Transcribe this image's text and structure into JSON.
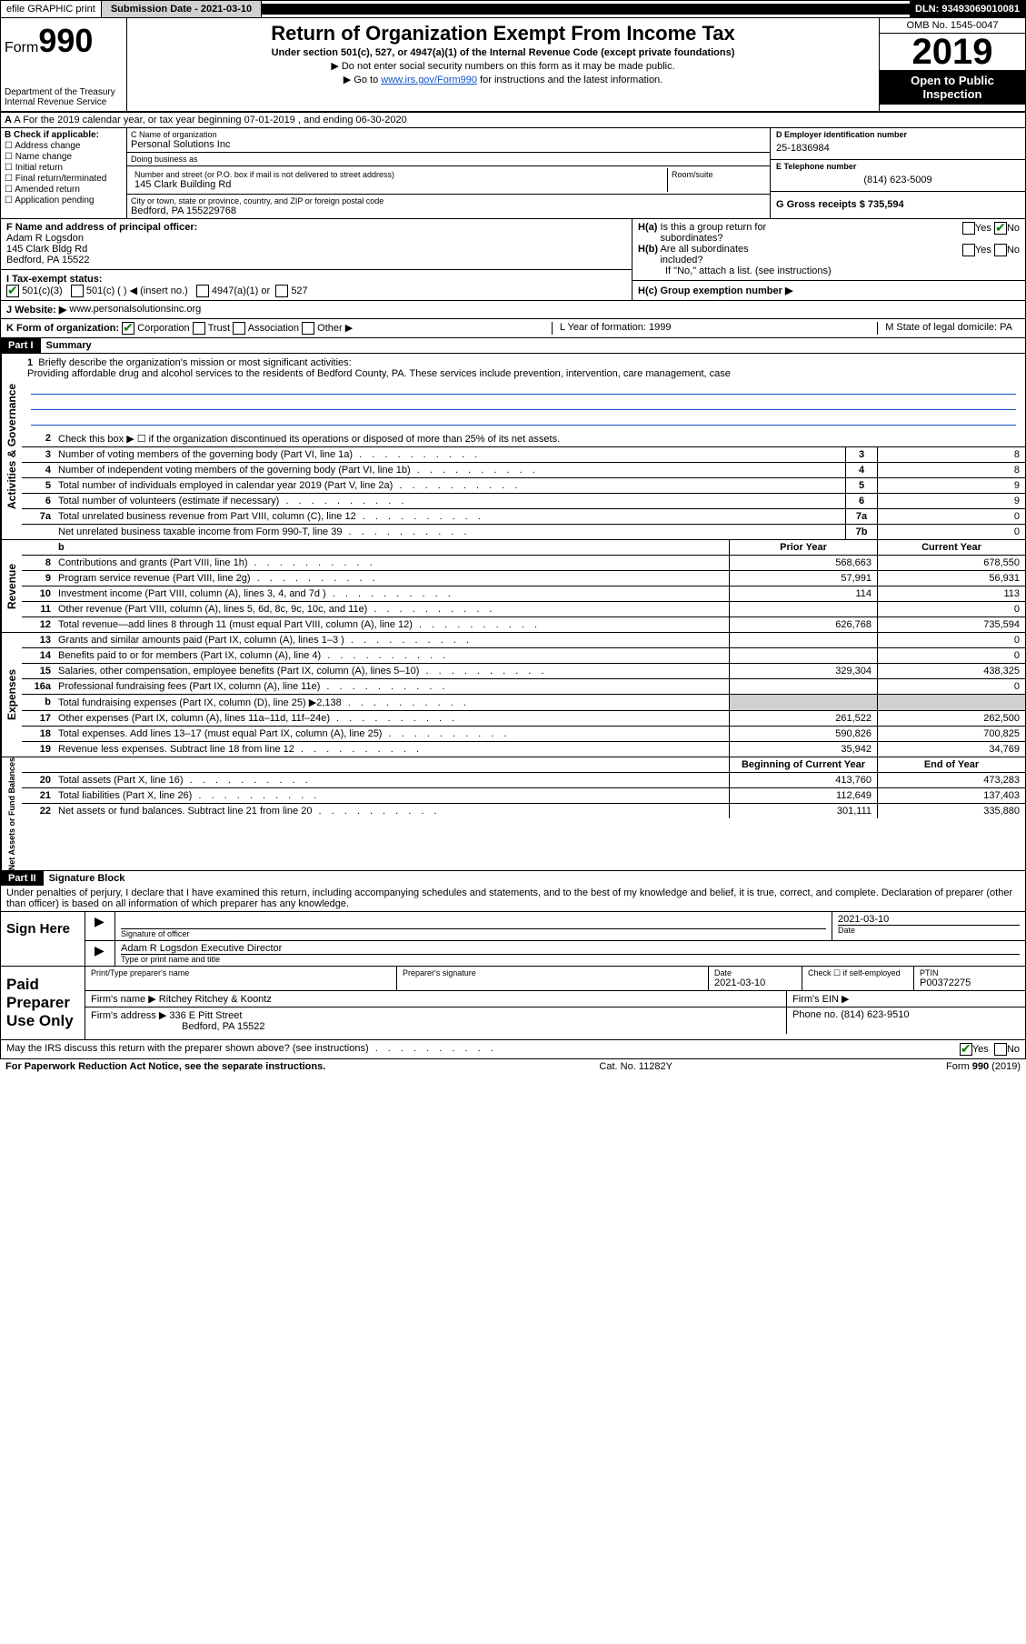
{
  "topbar": {
    "efile": "efile GRAPHIC print",
    "submission": "Submission Date - 2021-03-10",
    "dln": "DLN: 93493069010081"
  },
  "header": {
    "form_word": "Form",
    "form_num": "990",
    "title": "Return of Organization Exempt From Income Tax",
    "subtitle": "Under section 501(c), 527, or 4947(a)(1) of the Internal Revenue Code (except private foundations)",
    "sub2": "▶ Do not enter social security numbers on this form as it may be made public.",
    "sub3_pre": "▶ Go to ",
    "sub3_link": "www.irs.gov/Form990",
    "sub3_post": " for instructions and the latest information.",
    "dept": "Department of the Treasury\nInternal Revenue Service",
    "omb": "OMB No. 1545-0047",
    "year": "2019",
    "open_public": "Open to Public Inspection"
  },
  "rowA": "A For the 2019 calendar year, or tax year beginning 07-01-2019   , and ending 06-30-2020",
  "colB": {
    "label": "B Check if applicable:",
    "items": [
      "Address change",
      "Name change",
      "Initial return",
      "Final return/terminated",
      "Amended return",
      "Application pending"
    ]
  },
  "colC": {
    "name_label": "C Name of organization",
    "name": "Personal Solutions Inc",
    "dba_label": "Doing business as",
    "dba": "",
    "addr_label": "Number and street (or P.O. box if mail is not delivered to street address)",
    "addr": "145 Clark Building Rd",
    "room_label": "Room/suite",
    "city_label": "City or town, state or province, country, and ZIP or foreign postal code",
    "city": "Bedford, PA  155229768"
  },
  "colD": {
    "ein_label": "D Employer identification number",
    "ein": "25-1836984",
    "phone_label": "E Telephone number",
    "phone": "(814) 623-5009",
    "gross_label": "G Gross receipts $ 735,594"
  },
  "rowF": {
    "label": "F  Name and address of principal officer:",
    "name": "Adam R Logsdon",
    "addr1": "145 Clark Bldg Rd",
    "addr2": "Bedford, PA  15522"
  },
  "rowH": {
    "ha": "H(a)  Is this a group return for subordinates?",
    "hb": "H(b)  Are all subordinates included?",
    "hb_note": "If \"No,\" attach a list. (see instructions)",
    "hc": "H(c)  Group exemption number ▶",
    "yes": "Yes",
    "no": "No"
  },
  "rowI": {
    "label": "I  Tax-exempt status:",
    "opt1": "501(c)(3)",
    "opt2": "501(c) (  ) ◀ (insert no.)",
    "opt3": "4947(a)(1) or",
    "opt4": "527"
  },
  "rowJ": {
    "label": "J  Website: ▶",
    "val": "www.personalsolutionsinc.org"
  },
  "rowK": {
    "label": "K Form of organization:",
    "corp": "Corporation",
    "trust": "Trust",
    "assoc": "Association",
    "other": "Other ▶",
    "L": "L Year of formation: 1999",
    "M": "M State of legal domicile: PA"
  },
  "part1": {
    "label": "Part I",
    "title": "Summary",
    "q1": "Briefly describe the organization's mission or most significant activities:",
    "mission": "Providing affordable drug and alcohol services to the residents of Bedford County, PA. These services include prevention, intervention, care management, case",
    "q2": "Check this box ▶ ☐  if the organization discontinued its operations or disposed of more than 25% of its net assets."
  },
  "governance": {
    "side": "Activities & Governance",
    "rows": [
      {
        "n": "3",
        "d": "Number of voting members of the governing body (Part VI, line 1a)",
        "b": "3",
        "v": "8"
      },
      {
        "n": "4",
        "d": "Number of independent voting members of the governing body (Part VI, line 1b)",
        "b": "4",
        "v": "8"
      },
      {
        "n": "5",
        "d": "Total number of individuals employed in calendar year 2019 (Part V, line 2a)",
        "b": "5",
        "v": "9"
      },
      {
        "n": "6",
        "d": "Total number of volunteers (estimate if necessary)",
        "b": "6",
        "v": "9"
      },
      {
        "n": "7a",
        "d": "Total unrelated business revenue from Part VIII, column (C), line 12",
        "b": "7a",
        "v": "0"
      },
      {
        "n": "",
        "d": "Net unrelated business taxable income from Form 990-T, line 39",
        "b": "7b",
        "v": "0"
      }
    ]
  },
  "revenue": {
    "side": "Revenue",
    "head_prior": "Prior Year",
    "head_curr": "Current Year",
    "rows": [
      {
        "n": "8",
        "d": "Contributions and grants (Part VIII, line 1h)",
        "p": "568,663",
        "c": "678,550"
      },
      {
        "n": "9",
        "d": "Program service revenue (Part VIII, line 2g)",
        "p": "57,991",
        "c": "56,931"
      },
      {
        "n": "10",
        "d": "Investment income (Part VIII, column (A), lines 3, 4, and 7d )",
        "p": "114",
        "c": "113"
      },
      {
        "n": "11",
        "d": "Other revenue (Part VIII, column (A), lines 5, 6d, 8c, 9c, 10c, and 11e)",
        "p": "",
        "c": "0"
      },
      {
        "n": "12",
        "d": "Total revenue—add lines 8 through 11 (must equal Part VIII, column (A), line 12)",
        "p": "626,768",
        "c": "735,594"
      }
    ]
  },
  "expenses": {
    "side": "Expenses",
    "rows": [
      {
        "n": "13",
        "d": "Grants and similar amounts paid (Part IX, column (A), lines 1–3 )",
        "p": "",
        "c": "0"
      },
      {
        "n": "14",
        "d": "Benefits paid to or for members (Part IX, column (A), line 4)",
        "p": "",
        "c": "0"
      },
      {
        "n": "15",
        "d": "Salaries, other compensation, employee benefits (Part IX, column (A), lines 5–10)",
        "p": "329,304",
        "c": "438,325"
      },
      {
        "n": "16a",
        "d": "Professional fundraising fees (Part IX, column (A), line 11e)",
        "p": "",
        "c": "0"
      },
      {
        "n": "b",
        "d": "Total fundraising expenses (Part IX, column (D), line 25) ▶2,138",
        "p": "shaded",
        "c": "shaded"
      },
      {
        "n": "17",
        "d": "Other expenses (Part IX, column (A), lines 11a–11d, 11f–24e)",
        "p": "261,522",
        "c": "262,500"
      },
      {
        "n": "18",
        "d": "Total expenses. Add lines 13–17 (must equal Part IX, column (A), line 25)",
        "p": "590,826",
        "c": "700,825"
      },
      {
        "n": "19",
        "d": "Revenue less expenses. Subtract line 18 from line 12",
        "p": "35,942",
        "c": "34,769"
      }
    ]
  },
  "netassets": {
    "side": "Net Assets or Fund Balances",
    "head_prior": "Beginning of Current Year",
    "head_curr": "End of Year",
    "rows": [
      {
        "n": "20",
        "d": "Total assets (Part X, line 16)",
        "p": "413,760",
        "c": "473,283"
      },
      {
        "n": "21",
        "d": "Total liabilities (Part X, line 26)",
        "p": "112,649",
        "c": "137,403"
      },
      {
        "n": "22",
        "d": "Net assets or fund balances. Subtract line 21 from line 20",
        "p": "301,111",
        "c": "335,880"
      }
    ]
  },
  "part2": {
    "label": "Part II",
    "title": "Signature Block",
    "perjury": "Under penalties of perjury, I declare that I have examined this return, including accompanying schedules and statements, and to the best of my knowledge and belief, it is true, correct, and complete. Declaration of preparer (other than officer) is based on all information of which preparer has any knowledge."
  },
  "sign": {
    "label": "Sign Here",
    "sig_officer": "Signature of officer",
    "date": "2021-03-10",
    "date_label": "Date",
    "name": "Adam R Logsdon  Executive Director",
    "name_label": "Type or print name and title"
  },
  "paid": {
    "label": "Paid Preparer Use Only",
    "prep_name_label": "Print/Type preparer's name",
    "prep_sig_label": "Preparer's signature",
    "date_label": "Date",
    "date": "2021-03-10",
    "check_label": "Check ☐ if self-employed",
    "ptin_label": "PTIN",
    "ptin": "P00372275",
    "firm_name_label": "Firm's name    ▶",
    "firm_name": "Ritchey Ritchey & Koontz",
    "firm_ein_label": "Firm's EIN ▶",
    "firm_addr_label": "Firm's address ▶",
    "firm_addr1": "336 E Pitt Street",
    "firm_addr2": "Bedford, PA  15522",
    "phone_label": "Phone no. (814) 623-9510"
  },
  "discuss": "May the IRS discuss this return with the preparer shown above? (see instructions)",
  "footer": {
    "left": "For Paperwork Reduction Act Notice, see the separate instructions.",
    "mid": "Cat. No. 11282Y",
    "right": "Form 990 (2019)"
  }
}
